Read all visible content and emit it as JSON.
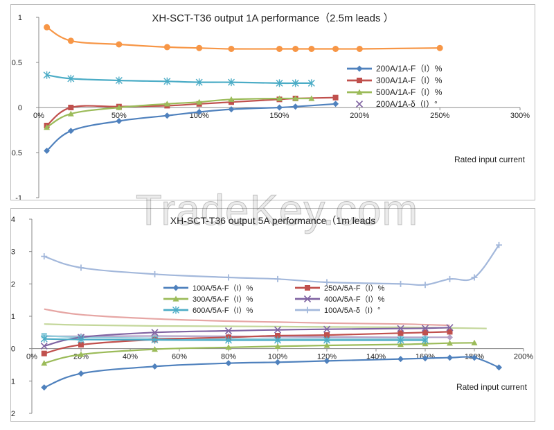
{
  "watermark": "TradeKey.com",
  "chart_data": [
    {
      "type": "line",
      "title": "XH-SCT-T36 output 1A performance（2.5m leads ）",
      "xlabel": "Rated input current",
      "ylabel": "",
      "xlim": [
        0,
        300
      ],
      "ylim": [
        -1,
        1
      ],
      "x_ticks": [
        "0%",
        "50%",
        "100%",
        "150%",
        "200%",
        "250%",
        "300%"
      ],
      "x_tick_values": [
        0,
        50,
        100,
        150,
        200,
        250,
        300
      ],
      "y_ticks": [
        "-1",
        "-0.5",
        "0",
        "0.5",
        "1"
      ],
      "y_tick_values": [
        -1,
        -0.5,
        0,
        0.5,
        1
      ],
      "legend_position": "right",
      "series": [
        {
          "name": "200A/1A-F（I）%",
          "color": "#4f81bd",
          "marker": "diamond",
          "x": [
            5,
            20,
            50,
            80,
            100,
            120,
            150,
            160,
            185
          ],
          "y": [
            -0.48,
            -0.26,
            -0.15,
            -0.09,
            -0.05,
            -0.02,
            0.0,
            0.01,
            0.04
          ]
        },
        {
          "name": "300A/1A-F（I）%",
          "color": "#c0504d",
          "marker": "square",
          "x": [
            5,
            20,
            50,
            80,
            100,
            120,
            150,
            160,
            185
          ],
          "y": [
            -0.2,
            0.0,
            0.01,
            0.02,
            0.04,
            0.06,
            0.09,
            0.1,
            0.11
          ]
        },
        {
          "name": "500A/1A-F（I）%",
          "color": "#9bbb59",
          "marker": "triangle",
          "x": [
            5,
            20,
            50,
            80,
            100,
            120,
            150,
            160,
            170
          ],
          "y": [
            -0.22,
            -0.07,
            0.0,
            0.04,
            0.06,
            0.09,
            0.1,
            0.1,
            0.1
          ]
        },
        {
          "name": "200A/1A-δ（I）°",
          "color": "#8064a2",
          "marker": "x",
          "line": false,
          "x": [],
          "y": []
        },
        {
          "name": "",
          "color": "#4bacc6",
          "marker": "star",
          "x": [
            5,
            20,
            50,
            80,
            100,
            120,
            150,
            160,
            170
          ],
          "y": [
            0.36,
            0.32,
            0.3,
            0.29,
            0.28,
            0.28,
            0.27,
            0.27,
            0.27
          ]
        },
        {
          "name": "",
          "color": "#f79646",
          "marker": "circle",
          "x": [
            5,
            20,
            50,
            80,
            100,
            120,
            150,
            160,
            170,
            185,
            200,
            250
          ],
          "y": [
            0.89,
            0.74,
            0.7,
            0.67,
            0.66,
            0.65,
            0.65,
            0.65,
            0.65,
            0.65,
            0.65,
            0.66
          ]
        }
      ]
    },
    {
      "type": "line",
      "title": "XH-SCT-T36 output 5A performance（1m leads",
      "xlabel": "Rated input current",
      "ylabel": "",
      "xlim": [
        0,
        200
      ],
      "ylim": [
        -2,
        4
      ],
      "x_ticks": [
        "0%",
        "20%",
        "40%",
        "60%",
        "80%",
        "100%",
        "120%",
        "140%",
        "160%",
        "180%",
        "200%"
      ],
      "x_tick_values": [
        0,
        20,
        40,
        60,
        80,
        100,
        120,
        140,
        160,
        180,
        200
      ],
      "y_ticks": [
        "-2",
        "-1",
        "0",
        "1",
        "2",
        "3",
        "4"
      ],
      "y_tick_values": [
        -2,
        -1,
        0,
        1,
        2,
        3,
        4
      ],
      "legend_position": "center",
      "series": [
        {
          "name": "100A/5A-F（I）%",
          "color": "#4f81bd",
          "marker": "diamond",
          "x": [
            5,
            20,
            50,
            80,
            100,
            120,
            150,
            160,
            170,
            180,
            190
          ],
          "y": [
            -1.2,
            -0.77,
            -0.55,
            -0.45,
            -0.42,
            -0.38,
            -0.32,
            -0.3,
            -0.28,
            -0.28,
            -0.58
          ]
        },
        {
          "name": "250A/5A-F（I）%",
          "color": "#c0504d",
          "marker": "square",
          "x": [
            5,
            20,
            50,
            80,
            100,
            120,
            150,
            160,
            170
          ],
          "y": [
            -0.15,
            0.12,
            0.28,
            0.35,
            0.4,
            0.42,
            0.48,
            0.5,
            0.52
          ]
        },
        {
          "name": "300A/5A-F（I）%",
          "color": "#9bbb59",
          "marker": "triangle",
          "x": [
            5,
            20,
            50,
            80,
            100,
            120,
            150,
            160,
            170,
            180
          ],
          "y": [
            -0.45,
            -0.18,
            -0.02,
            0.04,
            0.07,
            0.1,
            0.13,
            0.15,
            0.17,
            0.18
          ]
        },
        {
          "name": "400A/5A-F（I）%",
          "color": "#8064a2",
          "marker": "x",
          "x": [
            5,
            20,
            50,
            80,
            100,
            120,
            150,
            160,
            170
          ],
          "y": [
            0.08,
            0.35,
            0.5,
            0.55,
            0.58,
            0.6,
            0.62,
            0.63,
            0.65
          ]
        },
        {
          "name": "600A/5A-F（I）%",
          "color": "#4bacc6",
          "marker": "star",
          "x": [
            5,
            20,
            50,
            80,
            100,
            120,
            150,
            160
          ],
          "y": [
            0.3,
            0.28,
            0.27,
            0.26,
            0.26,
            0.26,
            0.26,
            0.26
          ]
        },
        {
          "name": "100A/5A-δ（I）°",
          "color": "#a3b8db",
          "marker": "plus",
          "x": [
            5,
            20,
            50,
            80,
            100,
            120,
            150,
            160,
            170,
            180,
            190
          ],
          "y": [
            2.85,
            2.5,
            2.3,
            2.2,
            2.15,
            2.05,
            2.0,
            1.97,
            2.15,
            2.2,
            3.2
          ]
        },
        {
          "name": "",
          "color": "#e6a6a4",
          "marker": "none",
          "x": [
            5,
            20,
            50,
            80,
            100,
            120,
            150,
            160,
            170
          ],
          "y": [
            1.22,
            1.05,
            0.92,
            0.85,
            0.82,
            0.79,
            0.76,
            0.74,
            0.72
          ]
        },
        {
          "name": "",
          "color": "#c4d79b",
          "marker": "none",
          "x": [
            5,
            20,
            50,
            80,
            100,
            120,
            150,
            160,
            170,
            180,
            185
          ],
          "y": [
            0.76,
            0.73,
            0.7,
            0.69,
            0.68,
            0.67,
            0.66,
            0.65,
            0.64,
            0.63,
            0.62
          ]
        },
        {
          "name": "",
          "color": "#b3a2c7",
          "marker": "diamond",
          "x": [
            5,
            20,
            50,
            80,
            100,
            120,
            150,
            160,
            170
          ],
          "y": [
            0.38,
            0.38,
            0.39,
            0.38,
            0.37,
            0.36,
            0.35,
            0.35,
            0.35
          ]
        },
        {
          "name": "",
          "color": "#92cddc",
          "marker": "square",
          "x": [
            5,
            20,
            50,
            80,
            100,
            120,
            150,
            160
          ],
          "y": [
            0.4,
            0.35,
            0.32,
            0.3,
            0.3,
            0.3,
            0.3,
            0.3
          ]
        }
      ]
    }
  ]
}
